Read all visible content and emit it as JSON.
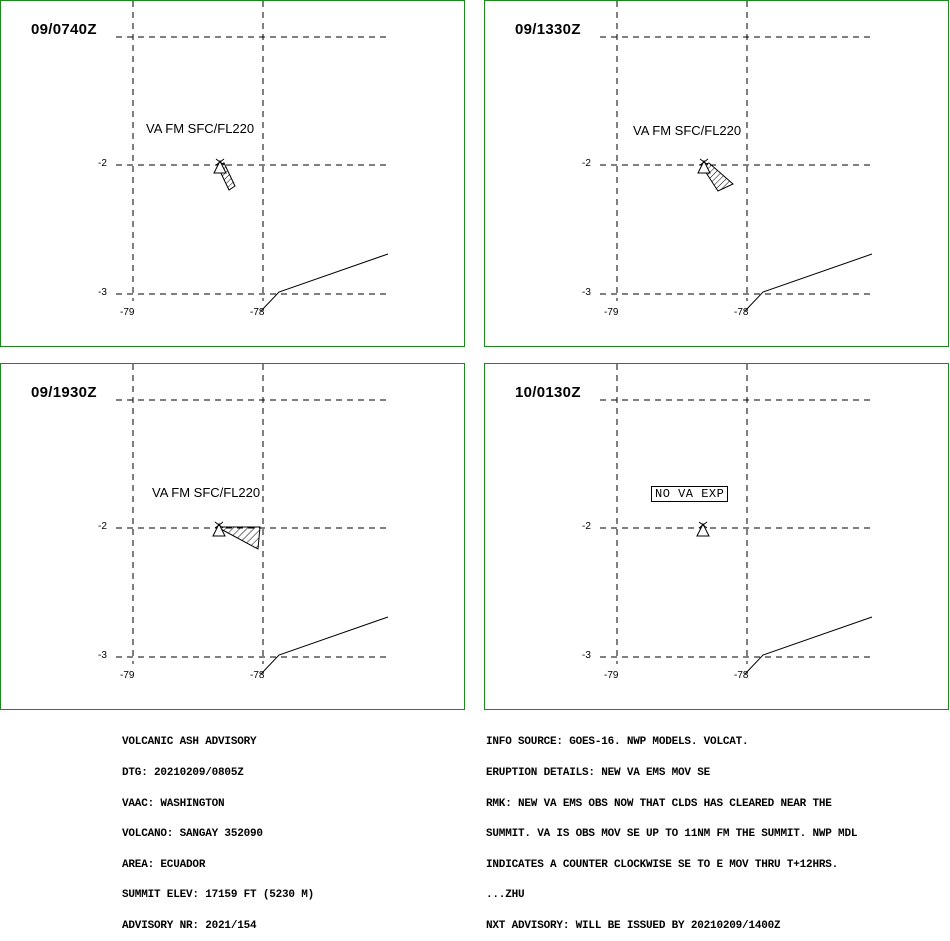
{
  "colors": {
    "panel_border": "#1a8a1a",
    "lines": "#000000"
  },
  "panels": [
    {
      "time": "09/0740Z",
      "label": "VA FM SFC/FL220",
      "type": "ash"
    },
    {
      "time": "09/1330Z",
      "label": "VA FM SFC/FL220",
      "type": "ash"
    },
    {
      "time": "09/1930Z",
      "label": "VA FM SFC/FL220",
      "type": "ash"
    },
    {
      "time": "10/0130Z",
      "label": "NO VA EXP",
      "type": "none"
    }
  ],
  "ticks": {
    "lat_upper": "-2",
    "lat_lower": "-3",
    "lon_left": "-79",
    "lon_right": "-78"
  },
  "symbols": {
    "volcano": "volcano-icon"
  },
  "advisory_left": [
    "VOLCANIC ASH ADVISORY",
    "DTG: 20210209/0805Z",
    "VAAC: WASHINGTON",
    "VOLCANO: SANGAY 352090",
    "AREA: ECUADOR",
    "SUMMIT ELEV: 17159 FT (5230 M)",
    "ADVISORY NR: 2021/154"
  ],
  "advisory_right": [
    "INFO SOURCE: GOES-16. NWP MODELS. VOLCAT.",
    "ERUPTION DETAILS: NEW VA EMS MOV SE",
    "RMK: NEW VA EMS OBS NOW THAT CLDS HAS CLEARED NEAR THE",
    "SUMMIT. VA IS OBS MOV SE UP TO 11NM FM THE SUMMIT. NWP MDL",
    "INDICATES A COUNTER CLOCKWISE SE TO E MOV THRU T+12HRS.",
    "...ZHU",
    "NXT ADVISORY: WILL BE ISSUED BY 20210209/1400Z"
  ]
}
